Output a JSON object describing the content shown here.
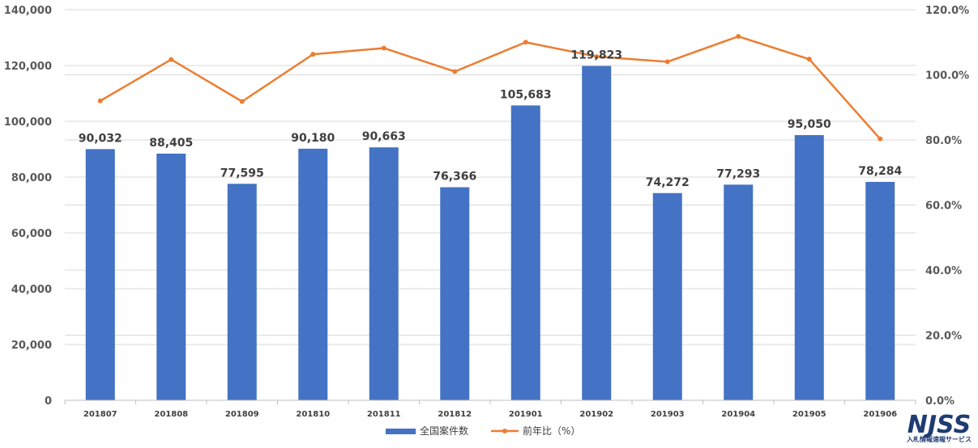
{
  "chart_data": {
    "type": "bar",
    "categories": [
      "201807",
      "201808",
      "201809",
      "201810",
      "201811",
      "201812",
      "201901",
      "201902",
      "201903",
      "201904",
      "201905",
      "201906"
    ],
    "series": [
      {
        "name": "全国案件数",
        "type": "bar",
        "axis": "left",
        "color": "#4472C4",
        "values": [
          90032,
          88405,
          77595,
          90180,
          90663,
          76366,
          105683,
          119823,
          74272,
          77293,
          95050,
          78284
        ],
        "labels": [
          "90,032",
          "88,405",
          "77,595",
          "90,180",
          "90,663",
          "76,366",
          "105,683",
          "119,823",
          "74,272",
          "77,293",
          "95,050",
          "78,284"
        ]
      },
      {
        "name": "前年比（%）",
        "type": "line",
        "axis": "right",
        "color": "#ED7D31",
        "values": [
          92.0,
          104.7,
          91.8,
          106.3,
          108.2,
          101.0,
          110.0,
          105.6,
          104.0,
          111.8,
          104.8,
          80.3
        ]
      }
    ],
    "left_axis": {
      "min": 0,
      "max": 140000,
      "ticks": [
        "0",
        "20,000",
        "40,000",
        "60,000",
        "80,000",
        "100,000",
        "120,000",
        "140,000"
      ]
    },
    "right_axis": {
      "min": 0,
      "max": 120,
      "ticks": [
        "0.0%",
        "20.0%",
        "40.0%",
        "60.0%",
        "80.0%",
        "100.0%",
        "120.0%"
      ]
    },
    "grid": true,
    "legend_position": "bottom"
  },
  "logo": {
    "main": "NJSS",
    "sub": "入札情報速報サービス"
  }
}
